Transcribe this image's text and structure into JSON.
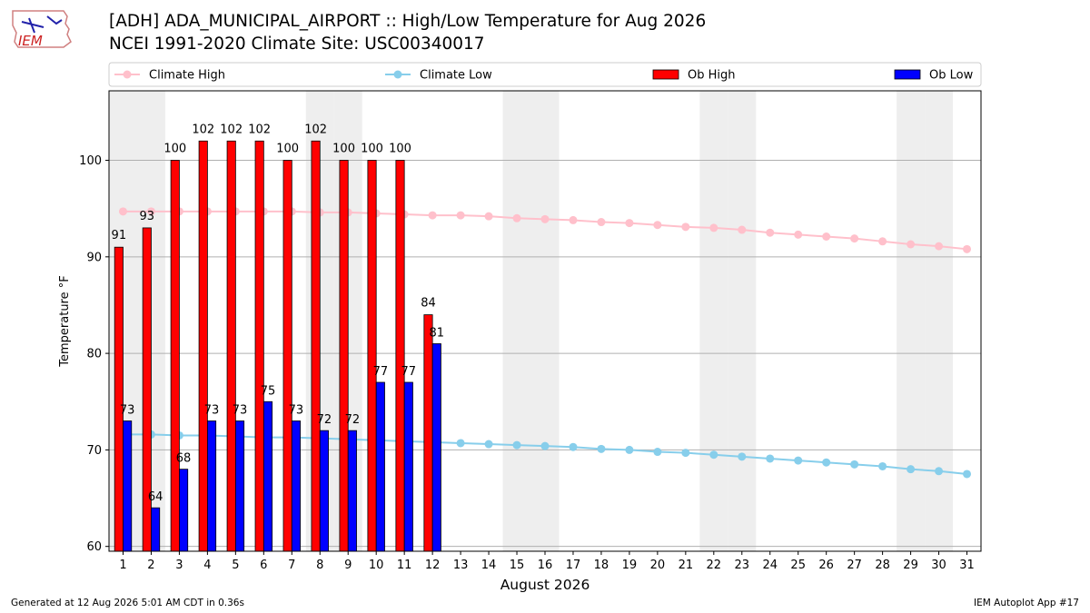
{
  "header": {
    "title_line1": "[ADH] ADA_MUNICIPAL_AIRPORT :: High/Low Temperature for Aug 2026",
    "title_line2": "NCEI 1991-2020 Climate Site: USC00340017"
  },
  "logo": {
    "text": "IEM",
    "color": "#cc2222"
  },
  "footer": {
    "left": "Generated at 12 Aug 2026 5:01 AM CDT in 0.36s",
    "right": "IEM Autoplot App #17"
  },
  "chart_data": {
    "type": "bar",
    "xlabel": "August 2026",
    "ylabel": "Temperature °F",
    "xlim": [
      0.5,
      31.5
    ],
    "ylim": [
      59.5,
      107.2
    ],
    "yticks": [
      60,
      70,
      80,
      90,
      100
    ],
    "days": [
      1,
      2,
      3,
      4,
      5,
      6,
      7,
      8,
      9,
      10,
      11,
      12,
      13,
      14,
      15,
      16,
      17,
      18,
      19,
      20,
      21,
      22,
      23,
      24,
      25,
      26,
      27,
      28,
      29,
      30,
      31
    ],
    "weekend_days": [
      1,
      2,
      8,
      9,
      15,
      16,
      22,
      23,
      29,
      30
    ],
    "grid": "horizontal",
    "legend_placement": "top",
    "series": [
      {
        "name": "Climate High",
        "kind": "line",
        "color": "#ffc0cb",
        "values": [
          94.7,
          94.7,
          94.7,
          94.7,
          94.7,
          94.7,
          94.7,
          94.6,
          94.6,
          94.5,
          94.4,
          94.3,
          94.3,
          94.2,
          94.0,
          93.9,
          93.8,
          93.6,
          93.5,
          93.3,
          93.1,
          93.0,
          92.8,
          92.5,
          92.3,
          92.1,
          91.9,
          91.6,
          91.3,
          91.1,
          90.8
        ]
      },
      {
        "name": "Climate Low",
        "kind": "line",
        "color": "#87ceeb",
        "values": [
          71.6,
          71.6,
          71.5,
          71.5,
          71.4,
          71.3,
          71.3,
          71.2,
          71.1,
          71.0,
          70.9,
          70.8,
          70.7,
          70.6,
          70.5,
          70.4,
          70.3,
          70.1,
          70.0,
          69.8,
          69.7,
          69.5,
          69.3,
          69.1,
          68.9,
          68.7,
          68.5,
          68.3,
          68.0,
          67.8,
          67.5
        ]
      },
      {
        "name": "Ob High",
        "kind": "bar",
        "color": "#ff0000",
        "values": [
          91,
          93,
          100,
          102,
          102,
          102,
          100,
          102,
          100,
          100,
          100,
          84
        ]
      },
      {
        "name": "Ob Low",
        "kind": "bar",
        "color": "#0000ff",
        "values": [
          73,
          64,
          68,
          73,
          73,
          75,
          73,
          72,
          72,
          77,
          77,
          81
        ]
      }
    ]
  }
}
